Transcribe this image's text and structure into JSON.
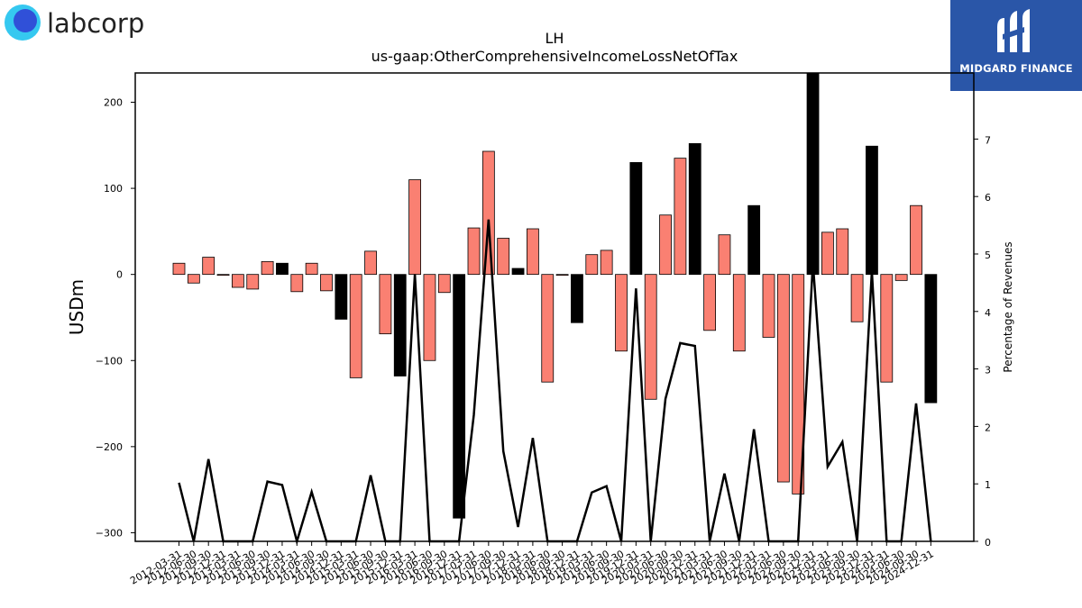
{
  "header": {
    "left_logo_text": "labcorp",
    "right_logo_text": "MIDGARD FINANCE"
  },
  "colors": {
    "positive_bar": "#fa8072",
    "highlight_bar": "#000000",
    "line": "#000000",
    "brand_blue": "#2a56a8",
    "labcorp_cyan": "#35c8f0",
    "labcorp_blue": "#3050d8"
  },
  "chart_data": {
    "type": "bar+line",
    "title": "LH",
    "subtitle": "us-gaap:OtherComprehensiveIncomeLossNetOfTax",
    "ylabel_left": "USDm",
    "ylabel_right": "Percentage of Revenues",
    "ylim_left": [
      -310,
      234
    ],
    "ylim_right": [
      0,
      8.15
    ],
    "yticks_left": [
      200,
      100,
      0,
      -100,
      -200,
      -300
    ],
    "yticks_right": [
      0,
      1,
      2,
      3,
      4,
      5,
      6,
      7
    ],
    "categories": [
      "2012-03-31",
      "2012-06-30",
      "2012-09-30",
      "2012-12-31",
      "2013-03-31",
      "2013-06-30",
      "2013-09-30",
      "2013-12-31",
      "2014-03-31",
      "2014-06-30",
      "2014-09-30",
      "2014-12-31",
      "2015-03-31",
      "2015-06-30",
      "2015-09-30",
      "2015-12-31",
      "2016-03-31",
      "2016-06-30",
      "2016-09-30",
      "2016-12-31",
      "2017-03-31",
      "2017-06-30",
      "2017-09-30",
      "2017-12-31",
      "2018-03-31",
      "2018-06-30",
      "2018-09-30",
      "2018-12-31",
      "2019-03-31",
      "2019-06-30",
      "2019-09-30",
      "2019-12-31",
      "2020-03-31",
      "2020-06-30",
      "2020-09-30",
      "2020-12-31",
      "2021-03-31",
      "2021-06-30",
      "2021-09-30",
      "2021-12-31",
      "2022-03-31",
      "2022-06-30",
      "2022-09-30",
      "2022-12-31",
      "2023-03-31",
      "2023-06-30",
      "2023-09-30",
      "2023-12-31",
      "2024-03-31",
      "2024-06-30",
      "2024-09-30",
      "2024-12-31"
    ],
    "bar_values": [
      13,
      -10,
      20,
      -1,
      -15,
      -17,
      15,
      13,
      -20,
      13,
      -19,
      -52,
      -120,
      27,
      -69,
      -118,
      110,
      -100,
      -21,
      -283,
      54,
      143,
      42,
      7,
      53,
      -125,
      -1,
      -56,
      23,
      28,
      -89,
      130,
      -145,
      69,
      135,
      152,
      -65,
      46,
      -89,
      80,
      -73,
      -241,
      -255,
      234,
      49,
      53,
      -55,
      149,
      -125,
      -7,
      80,
      -149
    ],
    "bar_highlight": [
      false,
      false,
      false,
      false,
      false,
      false,
      false,
      true,
      false,
      false,
      false,
      true,
      false,
      false,
      false,
      true,
      false,
      false,
      false,
      true,
      false,
      false,
      false,
      true,
      false,
      false,
      false,
      true,
      false,
      false,
      false,
      true,
      false,
      false,
      false,
      true,
      false,
      false,
      false,
      true,
      false,
      false,
      false,
      true,
      false,
      false,
      false,
      true,
      false,
      false,
      false,
      true
    ],
    "line_values": [
      1.02,
      0,
      1.43,
      0,
      0,
      0,
      1.04,
      0.98,
      0,
      0.86,
      0,
      0,
      0,
      1.15,
      0,
      0,
      4.65,
      0,
      0,
      0,
      2.2,
      5.6,
      1.57,
      0.25,
      1.8,
      0,
      0,
      0,
      0.85,
      0.96,
      0,
      4.4,
      0,
      2.48,
      3.45,
      3.4,
      0,
      1.18,
      0,
      1.95,
      0,
      0,
      0,
      4.85,
      1.3,
      1.73,
      0,
      4.7,
      0,
      0,
      2.4,
      0
    ]
  }
}
